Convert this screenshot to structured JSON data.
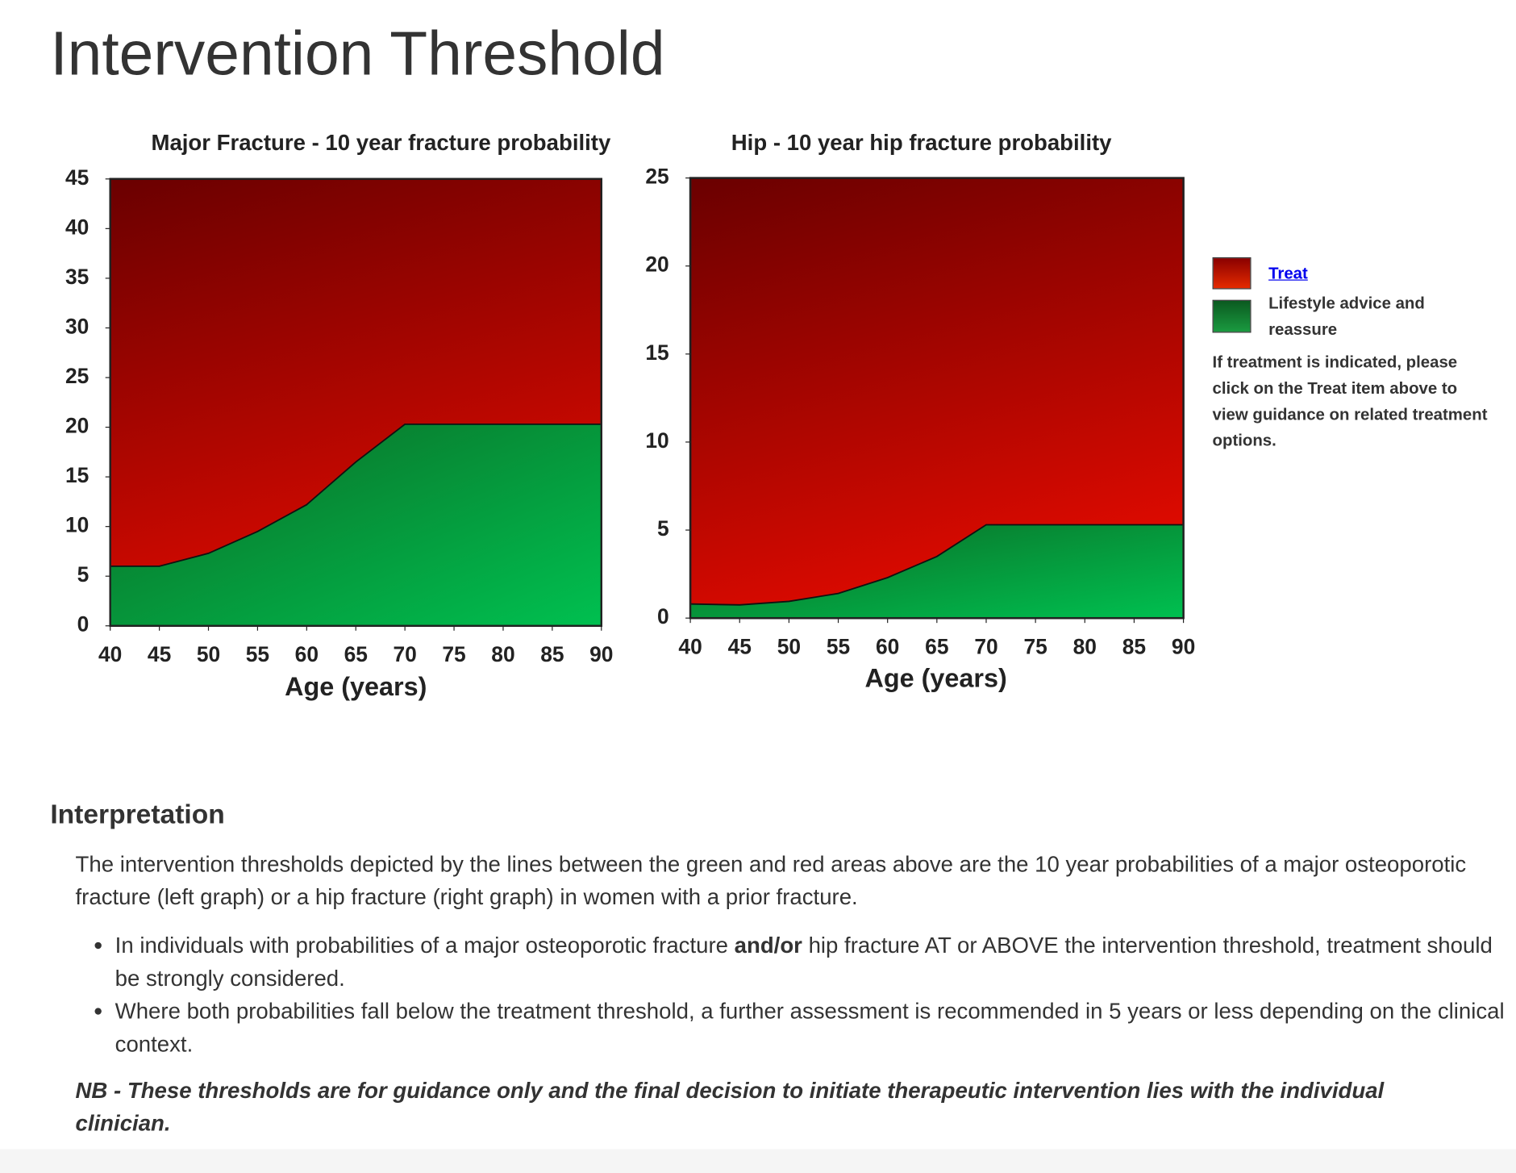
{
  "title": "Intervention Threshold",
  "chart_data": [
    {
      "type": "area",
      "title": "Major Fracture - 10 year fracture probability",
      "x_label": "Age (years)",
      "x": [
        40,
        45,
        50,
        55,
        60,
        65,
        70,
        75,
        80,
        85,
        90
      ],
      "values": [
        6,
        6,
        7.3,
        9.5,
        12.2,
        16.5,
        20.3,
        20.3,
        20.3,
        20.3,
        20.3
      ],
      "color": "#0a9a3f",
      "above_color": "#b00000",
      "xlim": [
        40,
        90
      ],
      "xticks": [
        40,
        45,
        50,
        55,
        60,
        65,
        70,
        75,
        80,
        85,
        90
      ],
      "ylim": [
        0,
        45
      ],
      "yticks": [
        0,
        5,
        10,
        15,
        20,
        25,
        30,
        35,
        40,
        45
      ]
    },
    {
      "type": "area",
      "title": "Hip - 10 year hip fracture probability",
      "x_label": "Age (years)",
      "x": [
        40,
        45,
        50,
        55,
        60,
        65,
        70,
        75,
        80,
        85,
        90
      ],
      "values": [
        0.8,
        0.75,
        0.95,
        1.4,
        2.3,
        3.5,
        5.3,
        5.3,
        5.3,
        5.3,
        5.3
      ],
      "color": "#0a9a3f",
      "above_color": "#b00000",
      "xlim": [
        40,
        90
      ],
      "xticks": [
        40,
        45,
        50,
        55,
        60,
        65,
        70,
        75,
        80,
        85,
        90
      ],
      "ylim": [
        0,
        25
      ],
      "yticks": [
        0,
        5,
        10,
        15,
        20,
        25
      ]
    }
  ],
  "legend": {
    "items": [
      "Treat",
      "Lifestyle advice and reassure"
    ],
    "note": "If treatment is indicated, please click on the Treat item above to view guidance on related treatment options."
  },
  "interpretation": {
    "heading": "Interpretation",
    "paragraph": "The intervention thresholds depicted by the lines between the green and red areas above are the 10 year probabilities of a major osteoporotic fracture (left graph) or a hip fracture (right graph) in women with a prior fracture.",
    "bullets": [
      [
        "In individuals with probabilities of a major osteoporotic fracture ",
        "and/or",
        " hip fracture AT or ABOVE the intervention threshold, treatment should be strongly considered."
      ],
      [
        "Where both probabilities fall below the treatment threshold, a further assessment is recommended in 5 years or less depending on the clinical context."
      ]
    ],
    "note": "NB - These thresholds are for guidance only and the final decision to initiate therapeutic intervention lies with the individual clinician."
  }
}
